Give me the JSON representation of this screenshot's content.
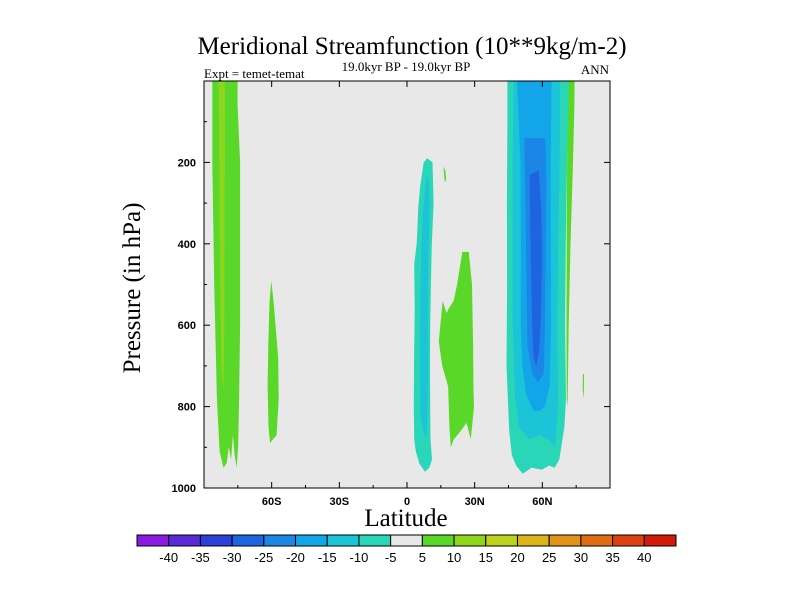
{
  "chart_data": {
    "type": "heatmap",
    "title": "Meridional Streamfunction (10**9kg/m-2)",
    "subtitle_left": "Expt = temet-temat",
    "subtitle_center": "19.0kyr BP - 19.0kyr BP",
    "subtitle_right": "ANN",
    "xlabel": "Latitude",
    "ylabel": "Pressure (in hPa)",
    "xlim": [
      -90,
      90
    ],
    "ylim": [
      0,
      1000
    ],
    "x_ticks": [
      {
        "value": -60,
        "label": "60S"
      },
      {
        "value": -30,
        "label": "30S"
      },
      {
        "value": 0,
        "label": "0"
      },
      {
        "value": 30,
        "label": "30N"
      },
      {
        "value": 60,
        "label": "60N"
      }
    ],
    "y_ticks": [
      {
        "value": 200,
        "label": "200"
      },
      {
        "value": 400,
        "label": "400"
      },
      {
        "value": 600,
        "label": "600"
      },
      {
        "value": 800,
        "label": "800"
      },
      {
        "value": 1000,
        "label": "1000"
      }
    ],
    "background_color": "#e8e8e8",
    "colorbar": {
      "levels": [
        "-40",
        "-35",
        "-30",
        "-25",
        "-20",
        "-15",
        "-10",
        "-5",
        "5",
        "10",
        "15",
        "20",
        "25",
        "30",
        "35",
        "40"
      ],
      "colors": [
        "#8a1be0",
        "#5b2ad8",
        "#2a40d6",
        "#1e63e0",
        "#1c86e6",
        "#12a6e8",
        "#1cc4d8",
        "#2ad6b8",
        "#e8e8e8",
        "#5ad82a",
        "#8ed61c",
        "#bcd21c",
        "#dab41a",
        "#e29418",
        "#e26c14",
        "#dc4012",
        "#d01a0a"
      ]
    },
    "regions": [
      {
        "name": "sh-polar-positive-band",
        "level": "5",
        "color": "#5ad82a",
        "points": [
          [
            -86.3,
            0
          ],
          [
            -75.1,
            0
          ],
          [
            -75.1,
            60
          ],
          [
            -74.0,
            200
          ],
          [
            -74.0,
            400
          ],
          [
            -74.0,
            600
          ],
          [
            -74.5,
            800
          ],
          [
            -74.9,
            900
          ],
          [
            -75.5,
            950
          ],
          [
            -76.4,
            920
          ],
          [
            -77.2,
            870
          ],
          [
            -78.0,
            930
          ],
          [
            -79.0,
            900
          ],
          [
            -80.0,
            940
          ],
          [
            -81.4,
            950
          ],
          [
            -83.1,
            910
          ],
          [
            -84.3,
            780
          ],
          [
            -85.5,
            500
          ],
          [
            -86.3,
            200
          ]
        ]
      },
      {
        "name": "sh-polar-positive-inner",
        "level": "10",
        "color": "#8ed61c",
        "points": [
          [
            -83.5,
            0
          ],
          [
            -80.8,
            0
          ],
          [
            -80.8,
            200
          ],
          [
            -80.9,
            400
          ],
          [
            -81.0,
            600
          ],
          [
            -81.4,
            760
          ],
          [
            -82.2,
            720
          ],
          [
            -82.8,
            500
          ],
          [
            -83.2,
            200
          ]
        ]
      },
      {
        "name": "sh-midlat-positive-cell",
        "level": "5",
        "color": "#5ad82a",
        "points": [
          [
            -60.2,
            490
          ],
          [
            -59.2,
            540
          ],
          [
            -57.1,
            680
          ],
          [
            -56.9,
            780
          ],
          [
            -57.8,
            870
          ],
          [
            -59.4,
            880
          ],
          [
            -60.7,
            890
          ],
          [
            -61.4,
            850
          ],
          [
            -61.8,
            750
          ],
          [
            -61.5,
            650
          ],
          [
            -61.0,
            550
          ]
        ]
      },
      {
        "name": "tropical-negative-cell",
        "level": "-5",
        "color": "#2ad6b8",
        "points": [
          [
            8.9,
            190
          ],
          [
            11.3,
            200
          ],
          [
            11.8,
            300
          ],
          [
            11.0,
            400
          ],
          [
            10.6,
            500
          ],
          [
            10.3,
            600
          ],
          [
            10.2,
            700
          ],
          [
            10.3,
            800
          ],
          [
            10.4,
            880
          ],
          [
            11.1,
            930
          ],
          [
            9.9,
            950
          ],
          [
            8.0,
            960
          ],
          [
            5.5,
            940
          ],
          [
            3.9,
            910
          ],
          [
            3.2,
            880
          ],
          [
            3.0,
            800
          ],
          [
            3.1,
            700
          ],
          [
            3.4,
            560
          ],
          [
            3.2,
            450
          ],
          [
            4.3,
            400
          ],
          [
            5.0,
            310
          ],
          [
            5.8,
            260
          ],
          [
            7.4,
            200
          ]
        ]
      },
      {
        "name": "tropical-negative-core",
        "level": "-10",
        "color": "#1cc4d8",
        "points": [
          [
            9.3,
            230
          ],
          [
            10.1,
            300
          ],
          [
            9.5,
            420
          ],
          [
            9.2,
            560
          ],
          [
            9.4,
            700
          ],
          [
            9.1,
            820
          ],
          [
            8.6,
            880
          ],
          [
            7.2,
            860
          ],
          [
            6.0,
            820
          ],
          [
            5.8,
            700
          ],
          [
            5.9,
            560
          ],
          [
            6.3,
            420
          ],
          [
            7.1,
            320
          ],
          [
            8.4,
            250
          ]
        ]
      },
      {
        "name": "nh-tropical-positive-cell",
        "level": "5",
        "color": "#5ad82a",
        "points": [
          [
            24.5,
            420
          ],
          [
            27.4,
            420
          ],
          [
            28.8,
            500
          ],
          [
            29.3,
            650
          ],
          [
            29.5,
            760
          ],
          [
            29.7,
            800
          ],
          [
            28.3,
            880
          ],
          [
            26.4,
            840
          ],
          [
            23.8,
            860
          ],
          [
            22.3,
            870
          ],
          [
            20.8,
            880
          ],
          [
            19.4,
            900
          ],
          [
            18.8,
            850
          ],
          [
            18.2,
            750
          ],
          [
            15.6,
            700
          ],
          [
            14.1,
            640
          ],
          [
            15.8,
            540
          ],
          [
            17.5,
            570
          ],
          [
            18.4,
            560
          ],
          [
            20.7,
            540
          ],
          [
            22.2,
            500
          ]
        ]
      },
      {
        "name": "nh-tropical-positive-speck",
        "level": "5",
        "color": "#5ad82a",
        "points": [
          [
            16.2,
            210
          ],
          [
            17.0,
            220
          ],
          [
            17.4,
            240
          ],
          [
            16.8,
            250
          ],
          [
            16.4,
            230
          ]
        ]
      },
      {
        "name": "nh-midlat-negative-cell",
        "level": "-5",
        "color": "#2ad6b8",
        "points": [
          [
            44.5,
            0
          ],
          [
            71.6,
            0
          ],
          [
            71.6,
            60
          ],
          [
            71.0,
            200
          ],
          [
            70.4,
            400
          ],
          [
            70.1,
            600
          ],
          [
            70.5,
            780
          ],
          [
            69.8,
            850
          ],
          [
            67.5,
            930
          ],
          [
            65.5,
            950
          ],
          [
            63.0,
            945
          ],
          [
            59.7,
            955
          ],
          [
            55.3,
            950
          ],
          [
            51.3,
            965
          ],
          [
            48.4,
            945
          ],
          [
            46.5,
            920
          ],
          [
            45.3,
            860
          ],
          [
            44.1,
            700
          ],
          [
            44.4,
            500
          ],
          [
            44.3,
            300
          ],
          [
            44.5,
            100
          ]
        ]
      },
      {
        "name": "nh-midlat-negative-inner-1",
        "level": "-10",
        "color": "#1cc4d8",
        "points": [
          [
            47.3,
            0
          ],
          [
            67.8,
            0
          ],
          [
            67.7,
            200
          ],
          [
            67.0,
            400
          ],
          [
            66.7,
            600
          ],
          [
            67.0,
            800
          ],
          [
            65.6,
            900
          ],
          [
            62.5,
            880
          ],
          [
            58.6,
            870
          ],
          [
            54.3,
            880
          ],
          [
            49.8,
            850
          ],
          [
            47.9,
            780
          ],
          [
            46.9,
            600
          ],
          [
            46.8,
            400
          ],
          [
            46.8,
            200
          ]
        ]
      },
      {
        "name": "nh-midlat-negative-inner-2",
        "level": "-15",
        "color": "#12a6e8",
        "points": [
          [
            48.8,
            0
          ],
          [
            64.1,
            0
          ],
          [
            63.7,
            200
          ],
          [
            63.8,
            400
          ],
          [
            63.9,
            600
          ],
          [
            63.2,
            750
          ],
          [
            61.2,
            800
          ],
          [
            58.8,
            810
          ],
          [
            56.0,
            810
          ],
          [
            52.8,
            770
          ],
          [
            51.1,
            700
          ],
          [
            50.4,
            600
          ],
          [
            50.5,
            400
          ],
          [
            50.3,
            200
          ]
        ]
      },
      {
        "name": "nh-midlat-negative-inner-3",
        "level": "-20",
        "color": "#1c86e6",
        "points": [
          [
            52.0,
            140
          ],
          [
            61.3,
            140
          ],
          [
            61.8,
            250
          ],
          [
            61.5,
            400
          ],
          [
            61.2,
            600
          ],
          [
            60.6,
            720
          ],
          [
            58.0,
            740
          ],
          [
            55.6,
            720
          ],
          [
            53.4,
            650
          ],
          [
            53.0,
            500
          ],
          [
            52.6,
            330
          ]
        ]
      },
      {
        "name": "nh-midlat-negative-core",
        "level": "-25",
        "color": "#1e63e0",
        "points": [
          [
            54.4,
            230
          ],
          [
            58.4,
            220
          ],
          [
            59.6,
            320
          ],
          [
            59.8,
            450
          ],
          [
            59.3,
            580
          ],
          [
            58.6,
            660
          ],
          [
            57.4,
            700
          ],
          [
            56.1,
            680
          ],
          [
            55.5,
            600
          ],
          [
            55.0,
            480
          ],
          [
            54.6,
            360
          ]
        ]
      },
      {
        "name": "nh-highlat-positive-band",
        "level": "5",
        "color": "#5ad82a",
        "points": [
          [
            71.6,
            0
          ],
          [
            74.3,
            0
          ],
          [
            74.2,
            60
          ],
          [
            73.6,
            200
          ],
          [
            72.5,
            400
          ],
          [
            71.7,
            600
          ],
          [
            71.2,
            800
          ],
          [
            70.8,
            780
          ],
          [
            70.7,
            600
          ],
          [
            70.8,
            400
          ],
          [
            71.0,
            200
          ]
        ]
      },
      {
        "name": "nh-highlat-positive-speck",
        "level": "5",
        "color": "#5ad82a",
        "points": [
          [
            78.0,
            720
          ],
          [
            78.5,
            720
          ],
          [
            78.4,
            780
          ],
          [
            77.9,
            760
          ]
        ]
      }
    ]
  }
}
